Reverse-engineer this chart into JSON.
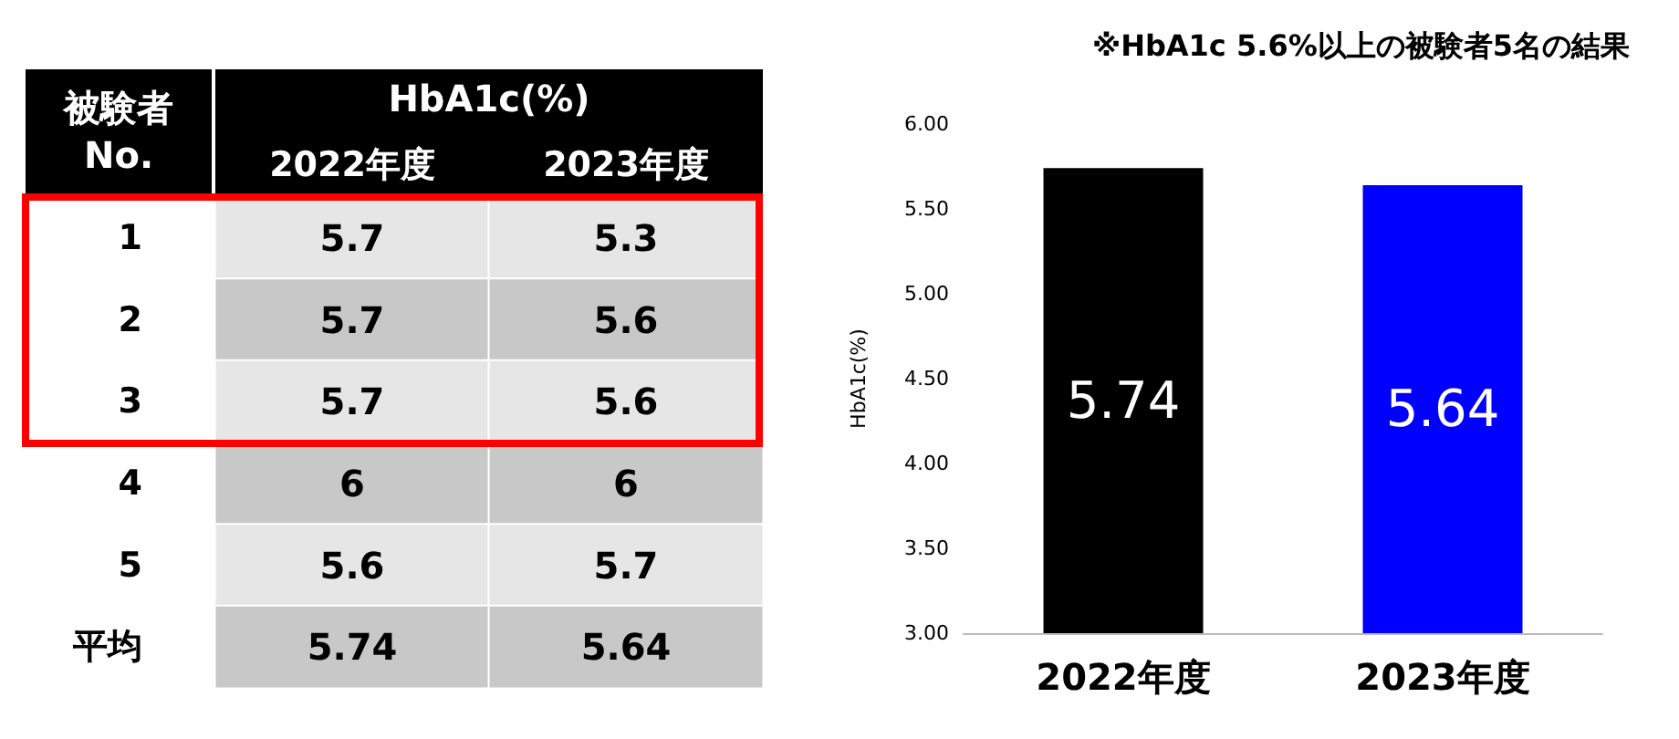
{
  "chart_data": [
    {
      "type": "heatmap",
      "title": "HbA1c(%)",
      "ylabel": "被験者\nNo.",
      "categories": [
        "2022年度",
        "2023年度"
      ],
      "y_categories": [
        "1",
        "2",
        "3",
        "4",
        "5",
        "平均"
      ],
      "cells": [
        [
          5.7,
          5.3
        ],
        [
          5.7,
          5.6
        ],
        [
          5.7,
          5.6
        ],
        [
          6,
          6
        ],
        [
          5.6,
          5.7
        ],
        [
          5.74,
          5.64
        ]
      ],
      "data_labels": true
    },
    {
      "type": "bar",
      "title": "※HbA1c 5.6%以上の被験者5名の結果",
      "ylabel": "HbA1c(%)",
      "categories": [
        "2022年度",
        "2023年度"
      ],
      "values": [
        5.74,
        5.64
      ],
      "colors": [
        "#000000",
        "#0000ff"
      ],
      "ylim": [
        3,
        6
      ],
      "yticks": [
        {
          "value": 3,
          "label": "3.00"
        },
        {
          "value": 3.5,
          "label": "3.50"
        },
        {
          "value": 4,
          "label": "4.00"
        },
        {
          "value": 4.5,
          "label": "4.50"
        },
        {
          "value": 5,
          "label": "5.00"
        },
        {
          "value": 5.5,
          "label": "5.50"
        },
        {
          "value": 6,
          "label": "6.00"
        }
      ],
      "grid": false,
      "data_labels": true
    }
  ]
}
